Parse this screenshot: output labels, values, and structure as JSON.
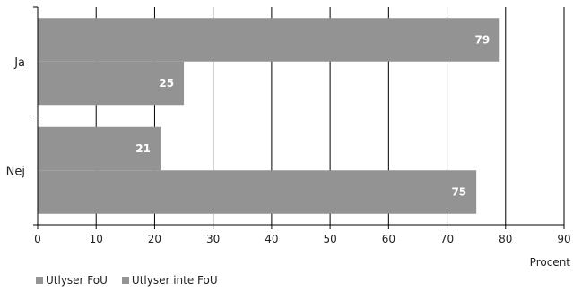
{
  "chart_data": {
    "type": "bar",
    "orientation": "horizontal",
    "categories": [
      "Ja",
      "Nej"
    ],
    "series": [
      {
        "name": "Utlyser FoU",
        "values": [
          79,
          21
        ],
        "color": "#939393"
      },
      {
        "name": "Utlyser inte FoU",
        "values": [
          25,
          75
        ],
        "color": "#939393"
      }
    ],
    "xlabel": "Procent",
    "xlim": [
      0,
      90
    ],
    "xticks": [
      0,
      10,
      20,
      30,
      40,
      50,
      60,
      70,
      80,
      90
    ],
    "grid": "vertical",
    "legend_position": "bottom-left",
    "data_labels": true
  }
}
